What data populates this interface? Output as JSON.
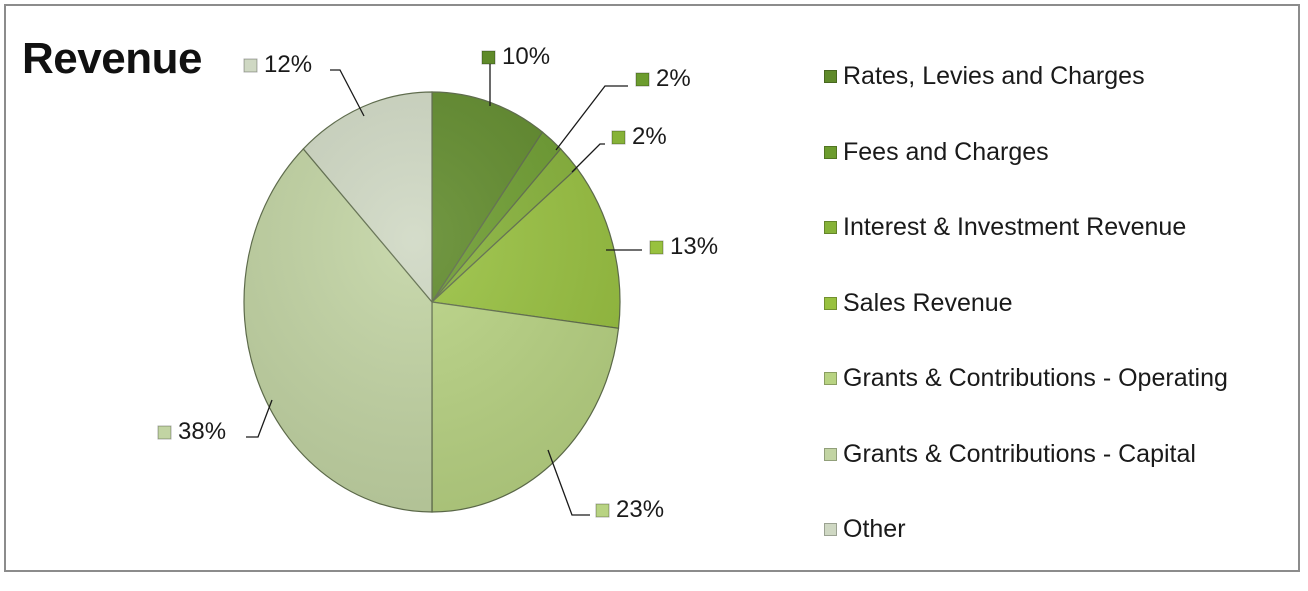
{
  "chart_data": {
    "type": "pie",
    "title": "Revenue",
    "series": [
      {
        "name": "Rates, Levies and Charges",
        "value": 10,
        "label": "10%",
        "color": "#5f8a2a"
      },
      {
        "name": "Fees and Charges",
        "value": 2,
        "label": "2%",
        "color": "#6c9c2e"
      },
      {
        "name": "Interest & Investment Revenue",
        "value": 2,
        "label": "2%",
        "color": "#86b238"
      },
      {
        "name": "Sales Revenue",
        "value": 13,
        "label": "13%",
        "color": "#98c13f"
      },
      {
        "name": "Grants & Contributions - Operating",
        "value": 23,
        "label": "23%",
        "color": "#b8d382"
      },
      {
        "name": "Grants & Contributions - Capital",
        "value": 38,
        "label": "38%",
        "color": "#c2d4a3"
      },
      {
        "name": "Other",
        "value": 12,
        "label": "12%",
        "color": "#cfd8c3"
      }
    ],
    "legend_position": "right"
  }
}
